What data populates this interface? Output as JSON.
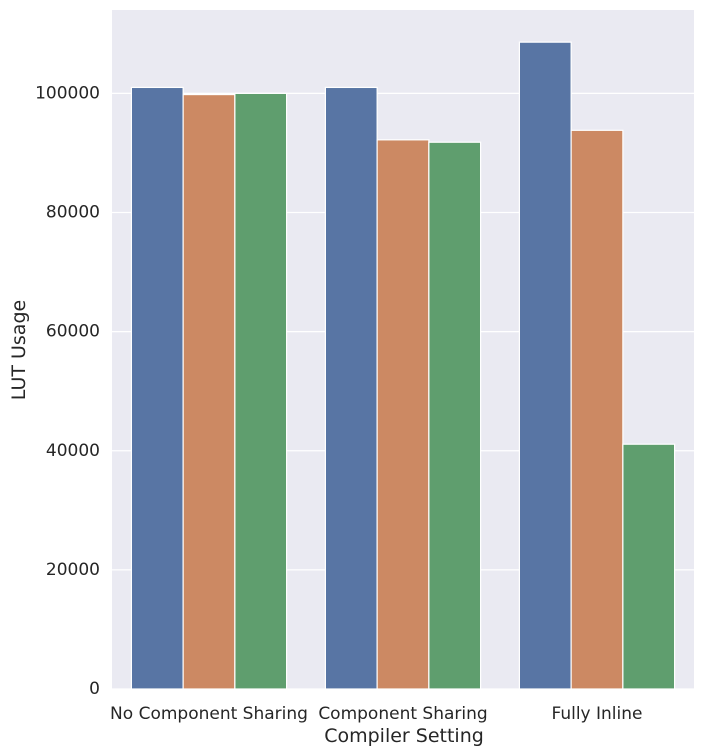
{
  "chart_data": {
    "type": "bar",
    "title": "",
    "xlabel": "Compiler Setting",
    "ylabel": "LUT Usage",
    "categories": [
      "No Component Sharing",
      "Component Sharing",
      "Fully Inline"
    ],
    "series": [
      {
        "color": "#5875a4",
        "values": [
          101000,
          101000,
          108600
        ]
      },
      {
        "color": "#cc8963",
        "values": [
          99800,
          92200,
          93800
        ]
      },
      {
        "color": "#5f9e6e",
        "values": [
          100000,
          91800,
          41100
        ]
      }
    ],
    "ylim": [
      0,
      114000
    ],
    "yticks": [
      "0",
      "20000",
      "40000",
      "60000",
      "80000",
      "100000"
    ],
    "grid": true,
    "legend": "none",
    "colors": {
      "background": "#eaeaf2",
      "grid": "#ffffff",
      "text": "#262626"
    }
  }
}
